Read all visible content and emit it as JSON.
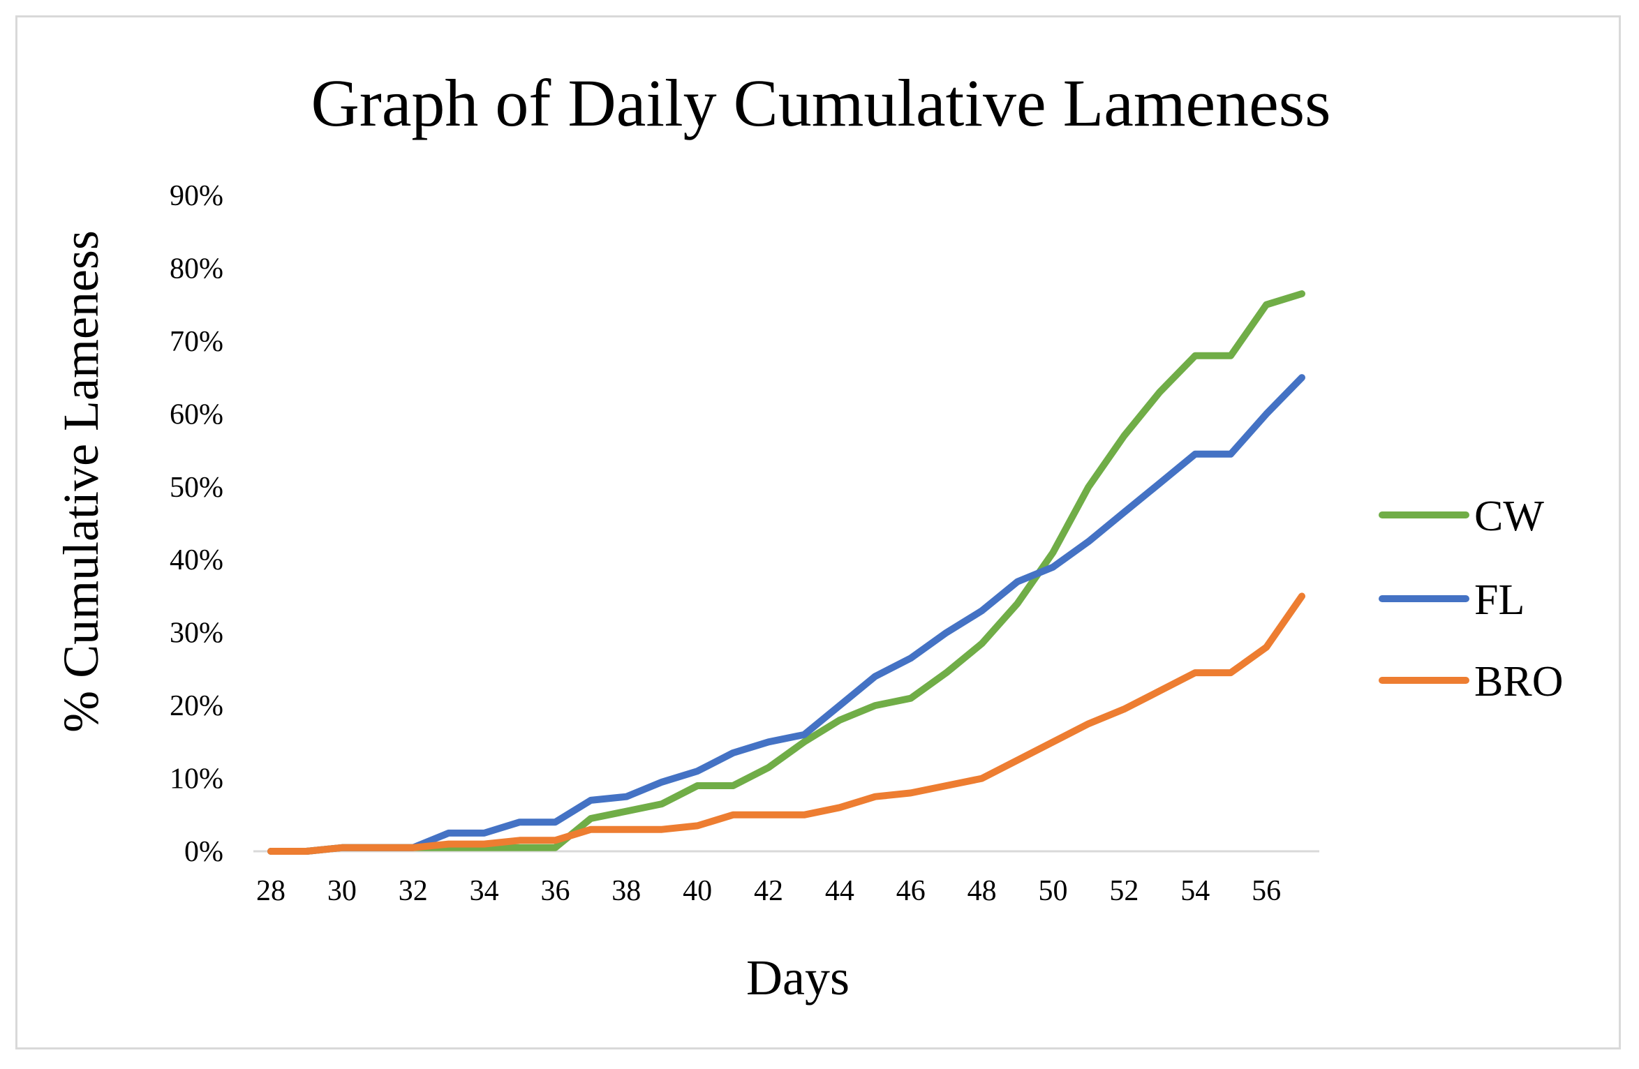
{
  "chart_data": {
    "type": "line",
    "title": "Graph of Daily Cumulative Lameness",
    "xlabel": "Days",
    "ylabel": "% Cumulative  Lameness",
    "x": [
      28,
      29,
      30,
      31,
      32,
      33,
      34,
      35,
      36,
      37,
      38,
      39,
      40,
      41,
      42,
      43,
      44,
      45,
      46,
      47,
      48,
      49,
      50,
      51,
      52,
      53,
      54,
      55,
      56,
      57
    ],
    "xticks": [
      28,
      30,
      32,
      34,
      36,
      38,
      40,
      42,
      44,
      46,
      48,
      50,
      52,
      54,
      56
    ],
    "xtick_labels": [
      "28",
      "30",
      "32",
      "34",
      "36",
      "38",
      "40",
      "42",
      "44",
      "46",
      "48",
      "50",
      "52",
      "54",
      "56"
    ],
    "xlim": [
      28,
      57
    ],
    "ylim": [
      0,
      90
    ],
    "yticks": [
      0,
      10,
      20,
      30,
      40,
      50,
      60,
      70,
      80,
      90
    ],
    "ytick_labels": [
      "0%",
      "10%",
      "20%",
      "30%",
      "40%",
      "50%",
      "60%",
      "70%",
      "80%",
      "90%"
    ],
    "grid": false,
    "legend_position": "right",
    "series": [
      {
        "name": "CW",
        "color": "#70ad47",
        "values": [
          0,
          0,
          0.5,
          0.5,
          0.5,
          0.5,
          0.5,
          0.5,
          0.5,
          4.5,
          5.5,
          6.5,
          9,
          9,
          11.5,
          15,
          18,
          20,
          21,
          24.5,
          28.5,
          34,
          41,
          50,
          57,
          63,
          68,
          68,
          75,
          76.5
        ]
      },
      {
        "name": "FL",
        "color": "#4472c4",
        "values": [
          0,
          0,
          0.5,
          0.5,
          0.5,
          2.5,
          2.5,
          4,
          4,
          7,
          7.5,
          9.5,
          11,
          13.5,
          15,
          16,
          20,
          24,
          26.5,
          30,
          33,
          37,
          39,
          42.5,
          46.5,
          50.5,
          54.5,
          54.5,
          60,
          65
        ]
      },
      {
        "name": "BRO",
        "color": "#ed7d31",
        "values": [
          0,
          0,
          0.5,
          0.5,
          0.5,
          1,
          1,
          1.5,
          1.5,
          3,
          3,
          3,
          3.5,
          5,
          5,
          5,
          6,
          7.5,
          8,
          9,
          10,
          12.5,
          15,
          17.5,
          19.5,
          22,
          24.5,
          24.5,
          28,
          35
        ]
      }
    ]
  }
}
